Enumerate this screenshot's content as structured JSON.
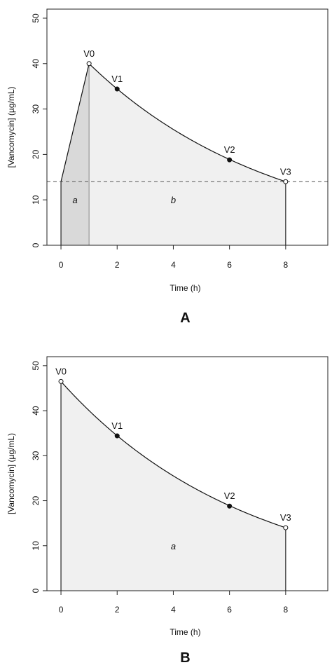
{
  "chart_data": [
    {
      "type": "line",
      "panel_label": "A",
      "xlabel": "Time (h)",
      "ylabel": "[Vancomycin] (µg/mL)",
      "xlim": [
        -0.5,
        9.5
      ],
      "ylim": [
        0,
        52
      ],
      "xticks": [
        0,
        2,
        4,
        6,
        8
      ],
      "yticks": [
        0,
        10,
        20,
        30,
        40,
        50
      ],
      "grid": false,
      "infusion": {
        "x": [
          0,
          1
        ],
        "y": [
          14,
          40
        ]
      },
      "decay": {
        "x0": 1,
        "y0": 40,
        "x1": 8,
        "y1": 14
      },
      "points": [
        {
          "label": "V0",
          "x": 1,
          "y": 40,
          "filled": false
        },
        {
          "label": "V1",
          "x": 2,
          "y": 34.4,
          "filled": true
        },
        {
          "label": "V2",
          "x": 6,
          "y": 18.8,
          "filled": true
        },
        {
          "label": "V3",
          "x": 8,
          "y": 14,
          "filled": false
        }
      ],
      "threshold": {
        "y": 14
      },
      "regions": [
        {
          "label": "a",
          "x": [
            0,
            1
          ],
          "color": "#d9d9d9",
          "label_x": 0.5,
          "label_y": 10
        },
        {
          "label": "b",
          "x": [
            1,
            8
          ],
          "color": "#f0f0f0",
          "label_x": 4,
          "label_y": 10
        }
      ]
    },
    {
      "type": "line",
      "panel_label": "B",
      "xlabel": "Time (h)",
      "ylabel": "[Vancomycin] (µg/mL)",
      "xlim": [
        -0.5,
        9.5
      ],
      "ylim": [
        0,
        52
      ],
      "xticks": [
        0,
        2,
        4,
        6,
        8
      ],
      "yticks": [
        0,
        10,
        20,
        30,
        40,
        50
      ],
      "grid": false,
      "decay": {
        "x0": 0,
        "y0": 46.5,
        "x1": 8,
        "y1": 14
      },
      "points": [
        {
          "label": "V0",
          "x": 0,
          "y": 46.5,
          "filled": false
        },
        {
          "label": "V1",
          "x": 2,
          "y": 34.4,
          "filled": true
        },
        {
          "label": "V2",
          "x": 6,
          "y": 18.8,
          "filled": true
        },
        {
          "label": "V3",
          "x": 8,
          "y": 14,
          "filled": false
        }
      ],
      "regions": [
        {
          "label": "a",
          "x": [
            0,
            8
          ],
          "color": "#f0f0f0",
          "label_x": 4,
          "label_y": 10
        }
      ]
    }
  ]
}
